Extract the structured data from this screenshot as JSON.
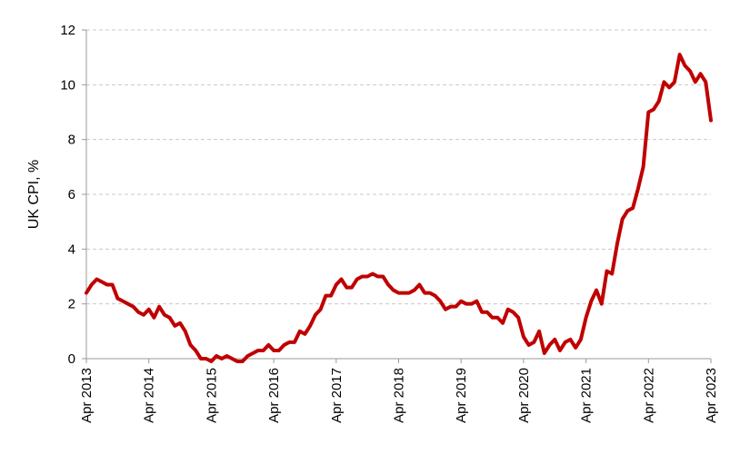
{
  "chart_data": {
    "type": "line",
    "title": "",
    "xlabel": "",
    "ylabel": "UK CPI, %",
    "ylim": [
      0,
      12
    ],
    "yticks": [
      0,
      2,
      4,
      6,
      8,
      10,
      12
    ],
    "xticks": [
      "Apr 2013",
      "Apr 2014",
      "Apr 2015",
      "Apr 2016",
      "Apr 2017",
      "Apr 2018",
      "Apr 2019",
      "Apr 2020",
      "Apr 2021",
      "Apr 2022",
      "Apr 2023"
    ],
    "grid": true,
    "legend": "none",
    "series": [
      {
        "color": "#c00000",
        "start": "Apr 2013",
        "frequency": "monthly",
        "values": [
          2.4,
          2.7,
          2.9,
          2.8,
          2.7,
          2.7,
          2.2,
          2.1,
          2.0,
          1.9,
          1.7,
          1.6,
          1.8,
          1.5,
          1.9,
          1.6,
          1.5,
          1.2,
          1.3,
          1.0,
          0.5,
          0.3,
          0.0,
          0.0,
          -0.1,
          0.1,
          0.0,
          0.1,
          0.0,
          -0.1,
          -0.1,
          0.1,
          0.2,
          0.3,
          0.3,
          0.5,
          0.3,
          0.3,
          0.5,
          0.6,
          0.6,
          1.0,
          0.9,
          1.2,
          1.6,
          1.8,
          2.3,
          2.3,
          2.7,
          2.9,
          2.6,
          2.6,
          2.9,
          3.0,
          3.0,
          3.1,
          3.0,
          3.0,
          2.7,
          2.5,
          2.4,
          2.4,
          2.4,
          2.5,
          2.7,
          2.4,
          2.4,
          2.3,
          2.1,
          1.8,
          1.9,
          1.9,
          2.1,
          2.0,
          2.0,
          2.1,
          1.7,
          1.7,
          1.5,
          1.5,
          1.3,
          1.8,
          1.7,
          1.5,
          0.8,
          0.5,
          0.6,
          1.0,
          0.2,
          0.5,
          0.7,
          0.3,
          0.6,
          0.7,
          0.4,
          0.7,
          1.5,
          2.1,
          2.5,
          2.0,
          3.2,
          3.1,
          4.2,
          5.1,
          5.4,
          5.5,
          6.2,
          7.0,
          9.0,
          9.1,
          9.4,
          10.1,
          9.9,
          10.1,
          11.1,
          10.7,
          10.5,
          10.1,
          10.4,
          10.1,
          8.7
        ]
      }
    ]
  }
}
